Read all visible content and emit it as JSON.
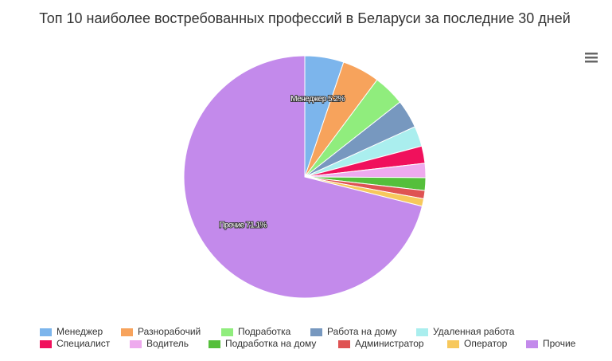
{
  "chart_data": {
    "type": "pie",
    "title": "Топ 10 наиболее востребованных профессий в Беларуси за последние 30 дней",
    "categories": [
      "Менеджер",
      "Разнорабочий",
      "Подработка",
      "Работа на дому",
      "Удаленная работа",
      "Специалист",
      "Водитель",
      "Подработка на дому",
      "Администратор",
      "Оператор",
      "Прочие"
    ],
    "values": [
      5.2,
      5.0,
      4.2,
      3.8,
      2.7,
      2.3,
      1.9,
      1.7,
      1.1,
      1.0,
      71.1
    ],
    "value_labels": [
      "Менеджер 5.2%",
      null,
      null,
      null,
      null,
      null,
      null,
      null,
      null,
      null,
      "Прочие 71.1%"
    ],
    "colors": [
      "#7cb5ec",
      "#f7a35c",
      "#90ed7d",
      "#7798bf",
      "#aaeeee",
      "#f0115c",
      "#eeaaee",
      "#55bf3b",
      "#df5353",
      "#f7c85c",
      "#c38aeb"
    ]
  }
}
